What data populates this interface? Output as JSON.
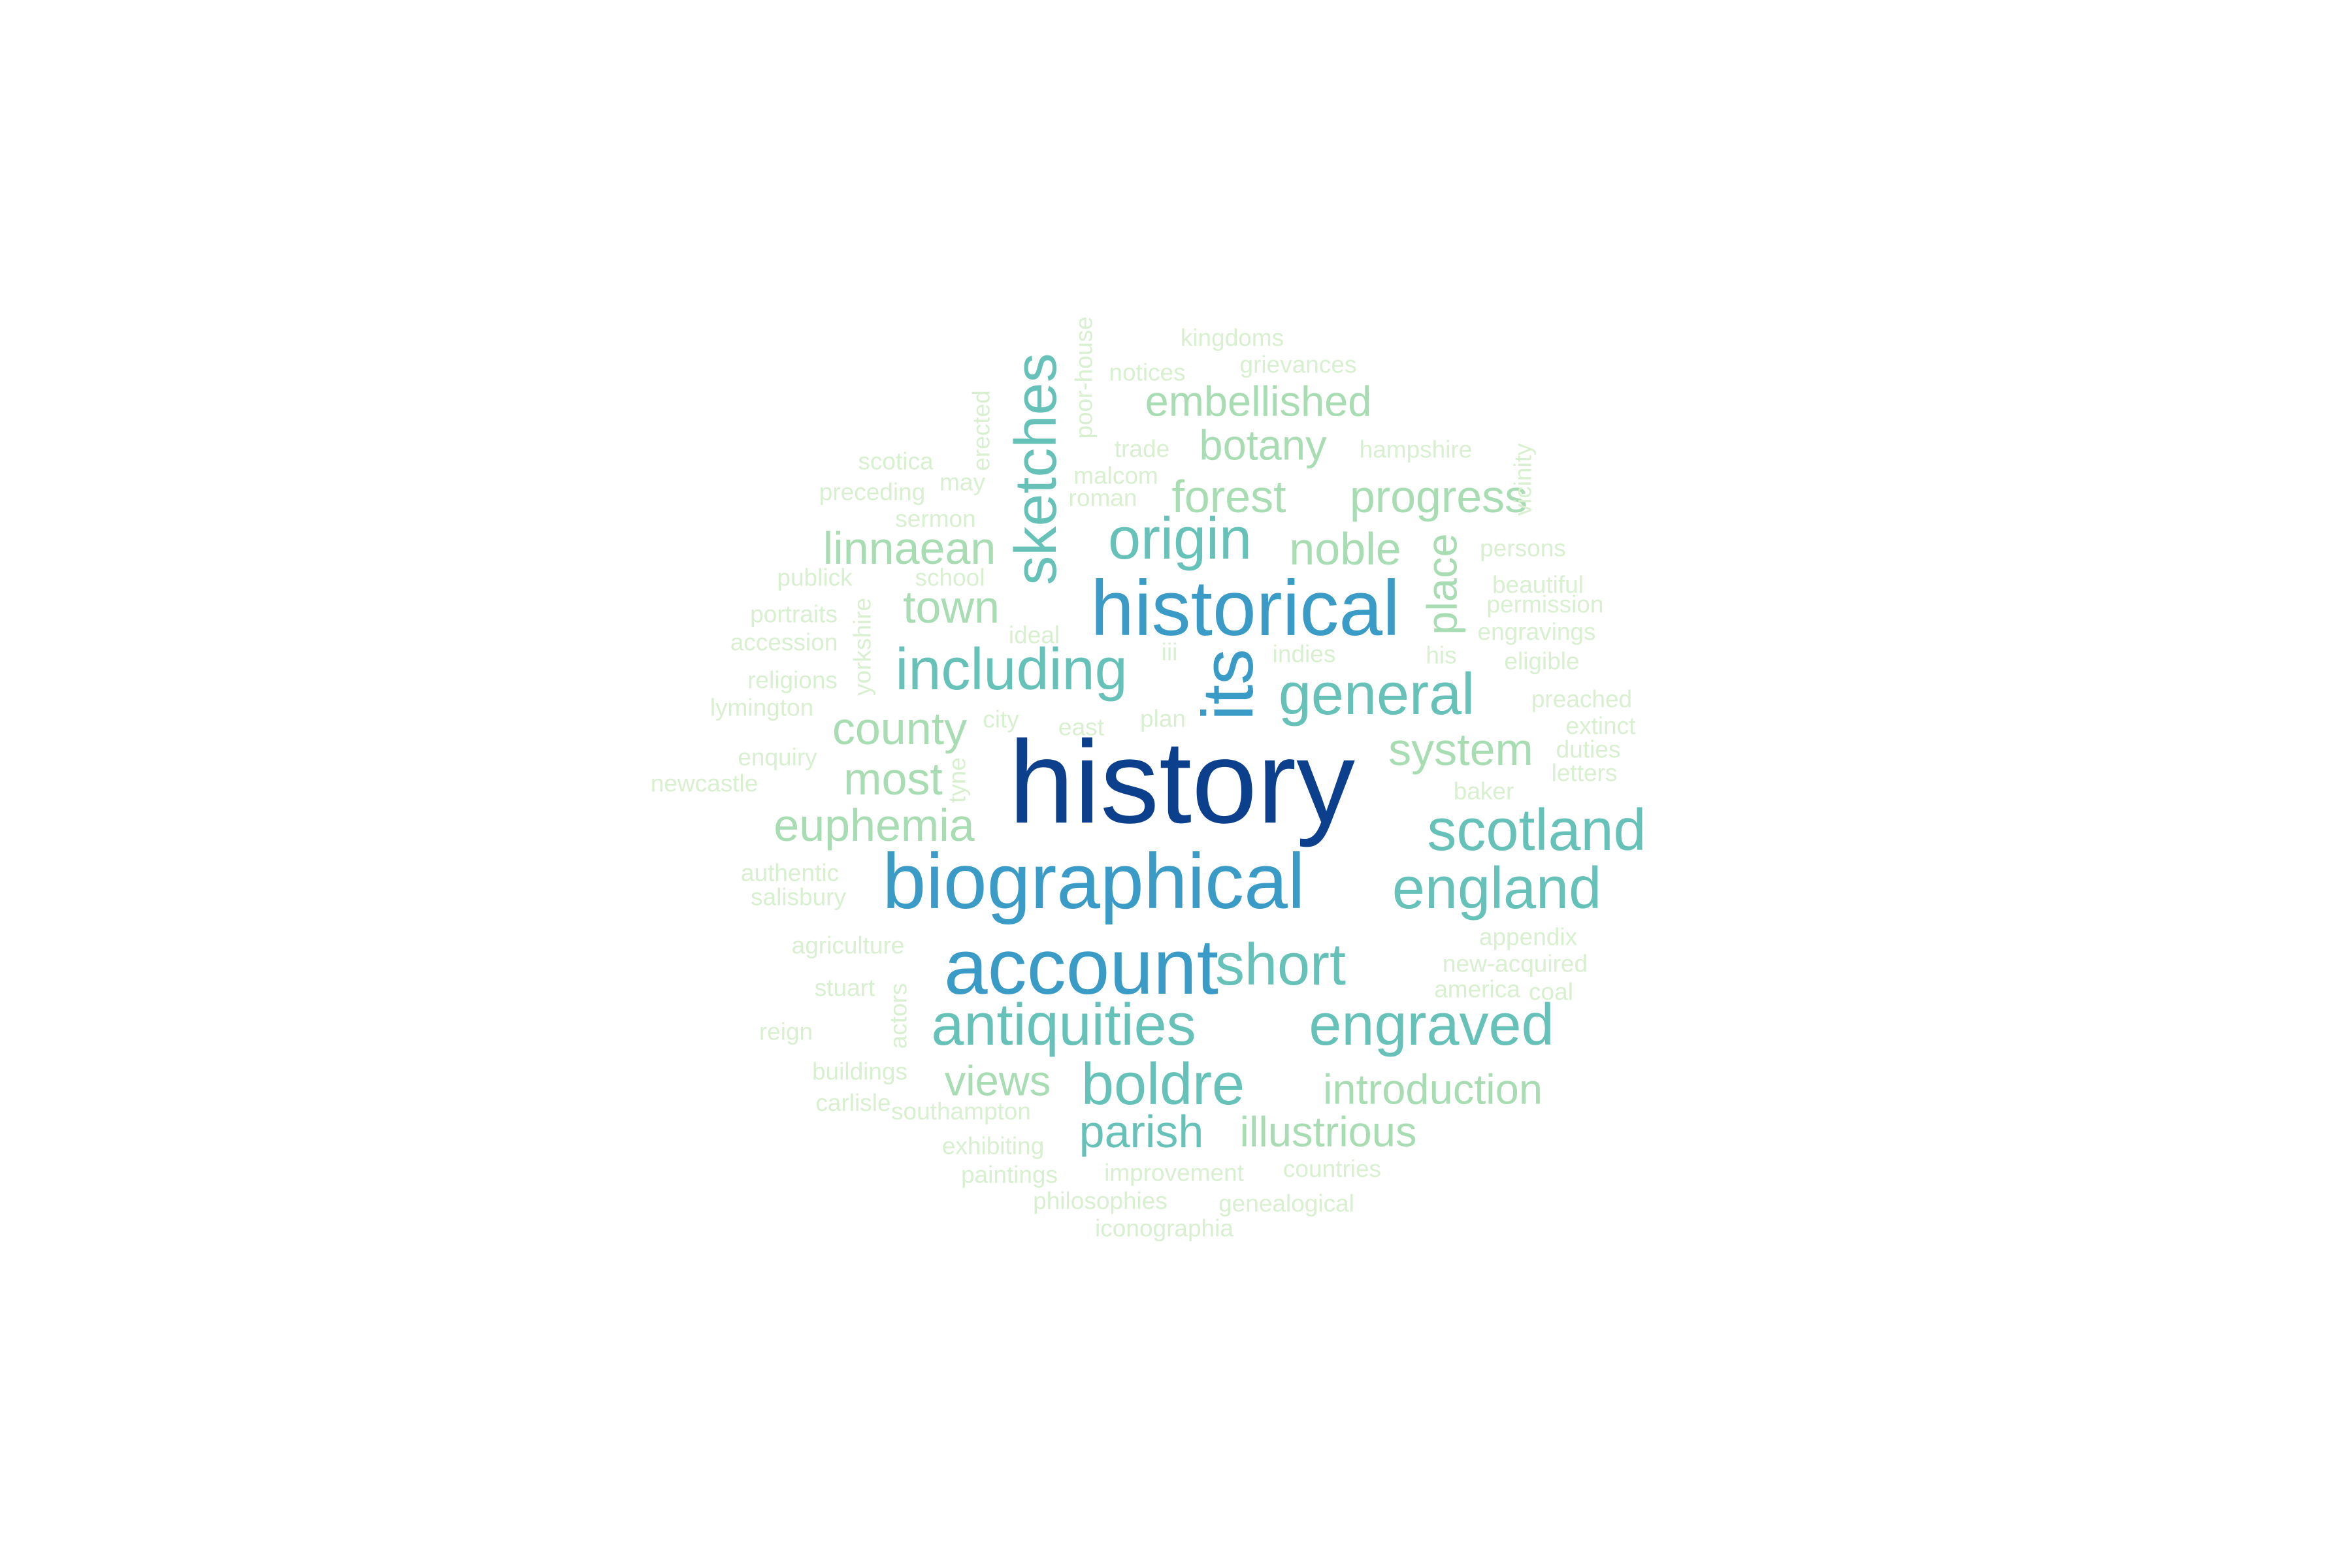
{
  "word_cloud": {
    "palette": {
      "level1": "#0c3f8c",
      "level2": "#3a9bc7",
      "level3": "#66c2b8",
      "level4": "#a8dcb2",
      "level5": "#d8efd0"
    },
    "words": [
      {
        "text": "history",
        "level": 1,
        "orientation": "horizontal"
      },
      {
        "text": "historical",
        "level": 2,
        "orientation": "horizontal"
      },
      {
        "text": "biographical",
        "level": 2,
        "orientation": "horizontal"
      },
      {
        "text": "account",
        "level": 2,
        "orientation": "horizontal"
      },
      {
        "text": "its",
        "level": 2,
        "orientation": "vertical"
      },
      {
        "text": "including",
        "level": 3,
        "orientation": "horizontal"
      },
      {
        "text": "general",
        "level": 3,
        "orientation": "horizontal"
      },
      {
        "text": "scotland",
        "level": 3,
        "orientation": "horizontal"
      },
      {
        "text": "england",
        "level": 3,
        "orientation": "horizontal"
      },
      {
        "text": "short",
        "level": 3,
        "orientation": "horizontal"
      },
      {
        "text": "antiquities",
        "level": 3,
        "orientation": "horizontal"
      },
      {
        "text": "engraved",
        "level": 3,
        "orientation": "horizontal"
      },
      {
        "text": "boldre",
        "level": 3,
        "orientation": "horizontal"
      },
      {
        "text": "sketches",
        "level": 3,
        "orientation": "vertical"
      },
      {
        "text": "origin",
        "level": 3,
        "orientation": "horizontal"
      },
      {
        "text": "parish",
        "level": 3,
        "orientation": "horizontal"
      },
      {
        "text": "linnaean",
        "level": 4,
        "orientation": "horizontal"
      },
      {
        "text": "town",
        "level": 4,
        "orientation": "horizontal"
      },
      {
        "text": "county",
        "level": 4,
        "orientation": "horizontal"
      },
      {
        "text": "most",
        "level": 4,
        "orientation": "horizontal"
      },
      {
        "text": "euphemia",
        "level": 4,
        "orientation": "horizontal"
      },
      {
        "text": "system",
        "level": 4,
        "orientation": "horizontal"
      },
      {
        "text": "noble",
        "level": 4,
        "orientation": "horizontal"
      },
      {
        "text": "forest",
        "level": 4,
        "orientation": "horizontal"
      },
      {
        "text": "progress",
        "level": 4,
        "orientation": "horizontal"
      },
      {
        "text": "botany",
        "level": 4,
        "orientation": "horizontal"
      },
      {
        "text": "embellished",
        "level": 4,
        "orientation": "horizontal"
      },
      {
        "text": "place",
        "level": 4,
        "orientation": "vertical"
      },
      {
        "text": "views",
        "level": 4,
        "orientation": "horizontal"
      },
      {
        "text": "introduction",
        "level": 4,
        "orientation": "horizontal"
      },
      {
        "text": "illustrious",
        "level": 4,
        "orientation": "horizontal"
      },
      {
        "text": "kingdoms",
        "level": 5,
        "orientation": "horizontal"
      },
      {
        "text": "notices",
        "level": 5,
        "orientation": "horizontal"
      },
      {
        "text": "grievances",
        "level": 5,
        "orientation": "horizontal"
      },
      {
        "text": "poor-house",
        "level": 5,
        "orientation": "vertical"
      },
      {
        "text": "erected",
        "level": 5,
        "orientation": "vertical"
      },
      {
        "text": "trade",
        "level": 5,
        "orientation": "horizontal"
      },
      {
        "text": "hampshire",
        "level": 5,
        "orientation": "horizontal"
      },
      {
        "text": "scotica",
        "level": 5,
        "orientation": "horizontal"
      },
      {
        "text": "malcom",
        "level": 5,
        "orientation": "horizontal"
      },
      {
        "text": "preceding",
        "level": 5,
        "orientation": "horizontal"
      },
      {
        "text": "may",
        "level": 5,
        "orientation": "horizontal"
      },
      {
        "text": "roman",
        "level": 5,
        "orientation": "horizontal"
      },
      {
        "text": "vicinity",
        "level": 5,
        "orientation": "vertical"
      },
      {
        "text": "sermon",
        "level": 5,
        "orientation": "horizontal"
      },
      {
        "text": "persons",
        "level": 5,
        "orientation": "horizontal"
      },
      {
        "text": "publick",
        "level": 5,
        "orientation": "horizontal"
      },
      {
        "text": "school",
        "level": 5,
        "orientation": "horizontal"
      },
      {
        "text": "beautiful",
        "level": 5,
        "orientation": "horizontal"
      },
      {
        "text": "portraits",
        "level": 5,
        "orientation": "horizontal"
      },
      {
        "text": "permission",
        "level": 5,
        "orientation": "horizontal"
      },
      {
        "text": "ideal",
        "level": 5,
        "orientation": "horizontal"
      },
      {
        "text": "engravings",
        "level": 5,
        "orientation": "horizontal"
      },
      {
        "text": "accession",
        "level": 5,
        "orientation": "horizontal"
      },
      {
        "text": "yorkshire",
        "level": 5,
        "orientation": "vertical"
      },
      {
        "text": "iii",
        "level": 5,
        "orientation": "horizontal"
      },
      {
        "text": "indies",
        "level": 5,
        "orientation": "horizontal"
      },
      {
        "text": "his",
        "level": 5,
        "orientation": "horizontal"
      },
      {
        "text": "eligible",
        "level": 5,
        "orientation": "horizontal"
      },
      {
        "text": "religions",
        "level": 5,
        "orientation": "horizontal"
      },
      {
        "text": "lymington",
        "level": 5,
        "orientation": "horizontal"
      },
      {
        "text": "preached",
        "level": 5,
        "orientation": "horizontal"
      },
      {
        "text": "city",
        "level": 5,
        "orientation": "horizontal"
      },
      {
        "text": "plan",
        "level": 5,
        "orientation": "horizontal"
      },
      {
        "text": "east",
        "level": 5,
        "orientation": "horizontal"
      },
      {
        "text": "extinct",
        "level": 5,
        "orientation": "horizontal"
      },
      {
        "text": "enquiry",
        "level": 5,
        "orientation": "horizontal"
      },
      {
        "text": "duties",
        "level": 5,
        "orientation": "horizontal"
      },
      {
        "text": "tyne",
        "level": 5,
        "orientation": "vertical"
      },
      {
        "text": "letters",
        "level": 5,
        "orientation": "horizontal"
      },
      {
        "text": "newcastle",
        "level": 5,
        "orientation": "horizontal"
      },
      {
        "text": "baker",
        "level": 5,
        "orientation": "horizontal"
      },
      {
        "text": "authentic",
        "level": 5,
        "orientation": "horizontal"
      },
      {
        "text": "salisbury",
        "level": 5,
        "orientation": "horizontal"
      },
      {
        "text": "appendix",
        "level": 5,
        "orientation": "horizontal"
      },
      {
        "text": "agriculture",
        "level": 5,
        "orientation": "horizontal"
      },
      {
        "text": "new-acquired",
        "level": 5,
        "orientation": "horizontal"
      },
      {
        "text": "stuart",
        "level": 5,
        "orientation": "horizontal"
      },
      {
        "text": "actors",
        "level": 5,
        "orientation": "vertical"
      },
      {
        "text": "america",
        "level": 5,
        "orientation": "horizontal"
      },
      {
        "text": "coal",
        "level": 5,
        "orientation": "horizontal"
      },
      {
        "text": "reign",
        "level": 5,
        "orientation": "horizontal"
      },
      {
        "text": "buildings",
        "level": 5,
        "orientation": "horizontal"
      },
      {
        "text": "carlisle",
        "level": 5,
        "orientation": "horizontal"
      },
      {
        "text": "southampton",
        "level": 5,
        "orientation": "horizontal"
      },
      {
        "text": "exhibiting",
        "level": 5,
        "orientation": "horizontal"
      },
      {
        "text": "paintings",
        "level": 5,
        "orientation": "horizontal"
      },
      {
        "text": "improvement",
        "level": 5,
        "orientation": "horizontal"
      },
      {
        "text": "countries",
        "level": 5,
        "orientation": "horizontal"
      },
      {
        "text": "philosophies",
        "level": 5,
        "orientation": "horizontal"
      },
      {
        "text": "genealogical",
        "level": 5,
        "orientation": "horizontal"
      },
      {
        "text": "iconographia",
        "level": 5,
        "orientation": "horizontal"
      }
    ]
  }
}
